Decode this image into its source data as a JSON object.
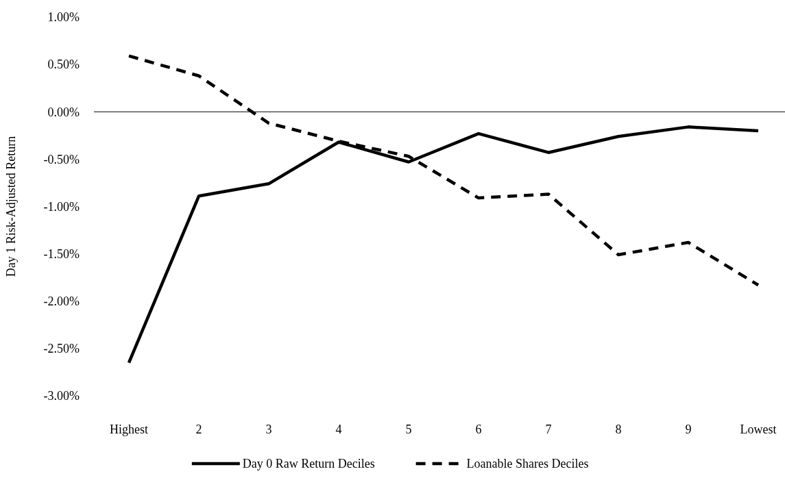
{
  "chart_data": {
    "type": "line",
    "ylabel": "Day 1 Risk-Adjusted Return",
    "categories": [
      "Highest",
      "2",
      "3",
      "4",
      "5",
      "6",
      "7",
      "8",
      "9",
      "Lowest"
    ],
    "series": [
      {
        "name": "Day 0 Raw Return Deciles",
        "color": "#000000",
        "line_style": "solid",
        "values": [
          -2.65,
          -0.89,
          -0.76,
          -0.32,
          -0.53,
          -0.23,
          -0.43,
          -0.26,
          -0.16,
          -0.2
        ]
      },
      {
        "name": "Loanable Shares Deciles",
        "color": "#000000",
        "line_style": "dashed",
        "values": [
          0.59,
          0.38,
          -0.12,
          -0.31,
          -0.47,
          -0.91,
          -0.87,
          -1.51,
          -1.38,
          -1.83
        ]
      }
    ],
    "ylim": [
      -3,
      1
    ],
    "yticks": [
      {
        "value": -3,
        "label": "-3.00%"
      },
      {
        "value": -2.5,
        "label": "-2.50%"
      },
      {
        "value": -2,
        "label": "-2.00%"
      },
      {
        "value": -1.5,
        "label": "-1.50%"
      },
      {
        "value": -1,
        "label": "-1.00%"
      },
      {
        "value": -0.5,
        "label": "-0.50%"
      },
      {
        "value": 0,
        "label": "0.00%"
      },
      {
        "value": 0.5,
        "label": "0.50%"
      },
      {
        "value": 1,
        "label": "1.00%"
      }
    ],
    "legend": "bottom",
    "marker": "none"
  }
}
